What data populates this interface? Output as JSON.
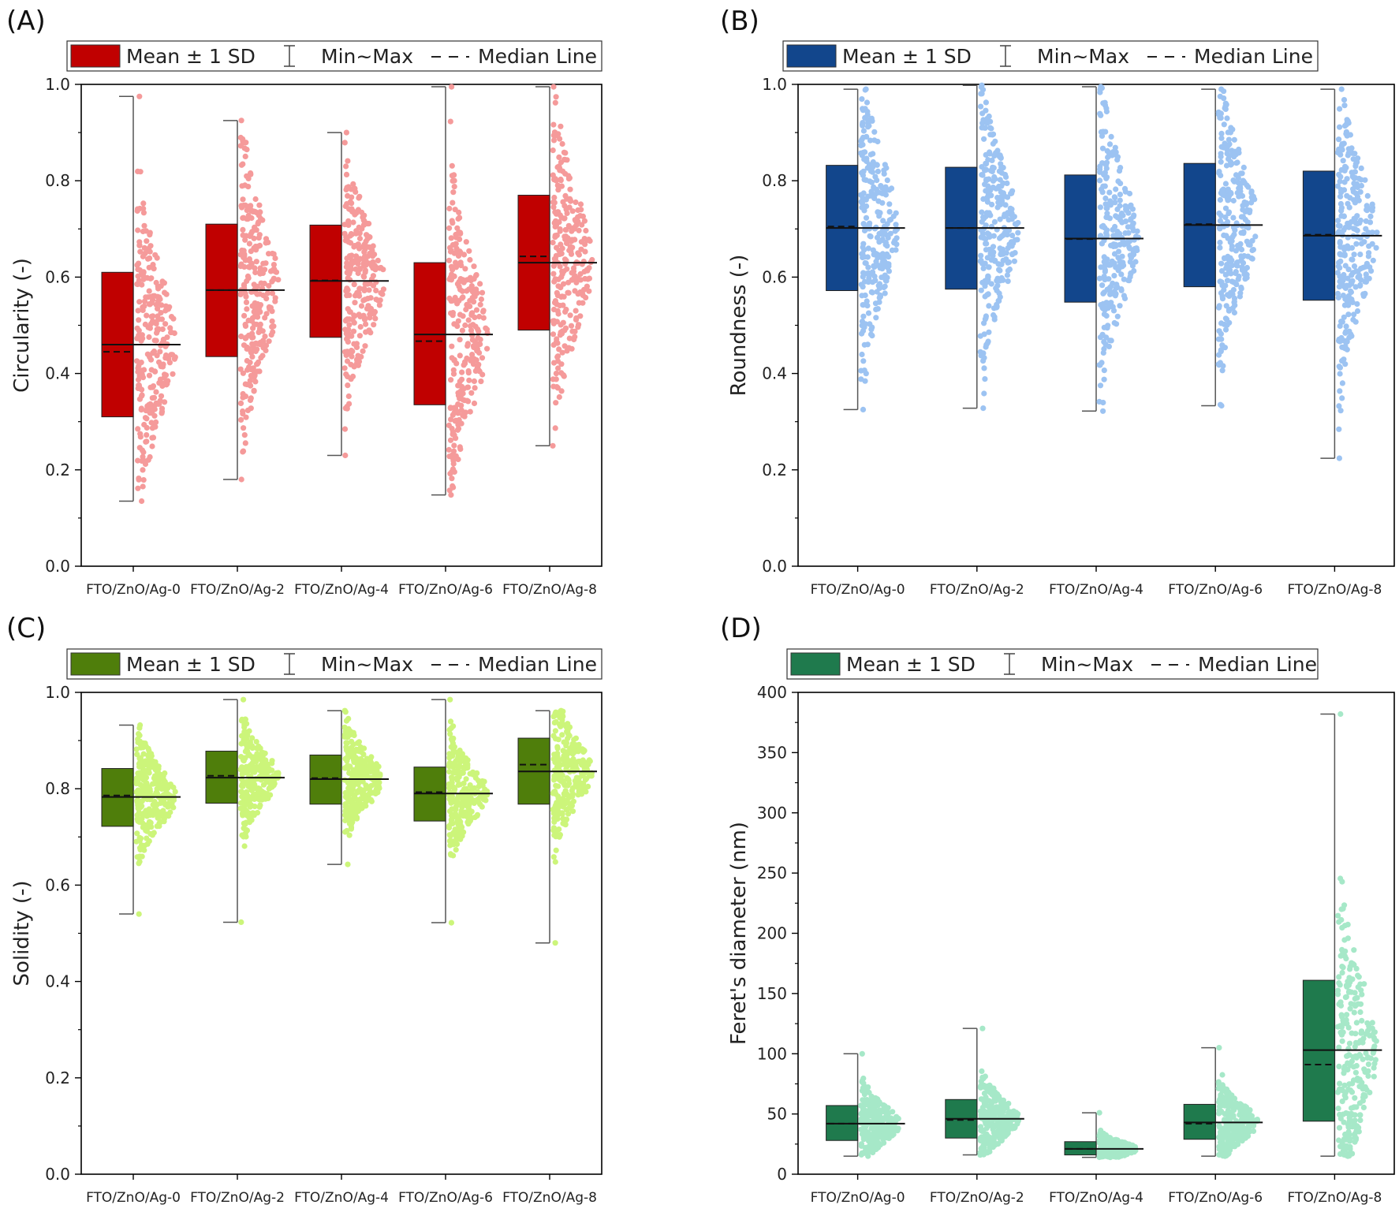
{
  "chart_data": [
    {
      "panel": "(A)",
      "type": "box",
      "ylabel": "Circularity (-)",
      "ylim": [
        0,
        1.0
      ],
      "yticks": [
        "0.0",
        "0.2",
        "0.4",
        "0.6",
        "0.8",
        "1.0"
      ],
      "categories": [
        "FTO/ZnO/Ag-0",
        "FTO/ZnO/Ag-2",
        "FTO/ZnO/Ag-4",
        "FTO/ZnO/Ag-6",
        "FTO/ZnO/Ag-8"
      ],
      "legend": [
        "Mean ± 1 SD",
        "Min~Max",
        "Median Line"
      ],
      "box_color": "#c00000",
      "point_color": "#f59a9a",
      "series": [
        {
          "category": "FTO/ZnO/Ag-0",
          "box_low": 0.31,
          "box_high": 0.61,
          "mean": 0.46,
          "median": 0.445,
          "min": 0.135,
          "max": 0.975
        },
        {
          "category": "FTO/ZnO/Ag-2",
          "box_low": 0.435,
          "box_high": 0.71,
          "mean": 0.573,
          "median": 0.573,
          "min": 0.18,
          "max": 0.925
        },
        {
          "category": "FTO/ZnO/Ag-4",
          "box_low": 0.475,
          "box_high": 0.708,
          "mean": 0.592,
          "median": 0.593,
          "min": 0.23,
          "max": 0.9
        },
        {
          "category": "FTO/ZnO/Ag-6",
          "box_low": 0.335,
          "box_high": 0.63,
          "mean": 0.481,
          "median": 0.467,
          "min": 0.148,
          "max": 0.995
        },
        {
          "category": "FTO/ZnO/Ag-8",
          "box_low": 0.49,
          "box_high": 0.77,
          "mean": 0.63,
          "median": 0.643,
          "min": 0.25,
          "max": 0.995
        }
      ]
    },
    {
      "panel": "(B)",
      "type": "box",
      "ylabel": "Roundness (-)",
      "ylim": [
        0,
        1.0
      ],
      "yticks": [
        "0.0",
        "0.2",
        "0.4",
        "0.6",
        "0.8",
        "1.0"
      ],
      "categories": [
        "FTO/ZnO/Ag-0",
        "FTO/ZnO/Ag-2",
        "FTO/ZnO/Ag-4",
        "FTO/ZnO/Ag-6",
        "FTO/ZnO/Ag-8"
      ],
      "legend": [
        "Mean ± 1 SD",
        "Min~Max",
        "Median Line"
      ],
      "box_color": "#12468c",
      "point_color": "#9cc3f2",
      "series": [
        {
          "category": "FTO/ZnO/Ag-0",
          "box_low": 0.572,
          "box_high": 0.832,
          "mean": 0.702,
          "median": 0.705,
          "min": 0.325,
          "max": 0.99
        },
        {
          "category": "FTO/ZnO/Ag-2",
          "box_low": 0.575,
          "box_high": 0.828,
          "mean": 0.702,
          "median": 0.702,
          "min": 0.328,
          "max": 0.998
        },
        {
          "category": "FTO/ZnO/Ag-4",
          "box_low": 0.548,
          "box_high": 0.812,
          "mean": 0.68,
          "median": 0.679,
          "min": 0.322,
          "max": 0.995
        },
        {
          "category": "FTO/ZnO/Ag-6",
          "box_low": 0.58,
          "box_high": 0.836,
          "mean": 0.708,
          "median": 0.71,
          "min": 0.333,
          "max": 0.99
        },
        {
          "category": "FTO/ZnO/Ag-8",
          "box_low": 0.552,
          "box_high": 0.82,
          "mean": 0.686,
          "median": 0.688,
          "min": 0.224,
          "max": 0.99
        }
      ]
    },
    {
      "panel": "(C)",
      "type": "box",
      "ylabel": "Solidity (-)",
      "ylim": [
        0,
        1.0
      ],
      "yticks": [
        "0.0",
        "0.2",
        "0.4",
        "0.6",
        "0.8",
        "1.0"
      ],
      "categories": [
        "FTO/ZnO/Ag-0",
        "FTO/ZnO/Ag-2",
        "FTO/ZnO/Ag-4",
        "FTO/ZnO/Ag-6",
        "FTO/ZnO/Ag-8"
      ],
      "legend": [
        "Mean ± 1 SD",
        "Min~Max",
        "Median Line"
      ],
      "box_color": "#4f7e0b",
      "point_color": "#ccf57a",
      "series": [
        {
          "category": "FTO/ZnO/Ag-0",
          "box_low": 0.722,
          "box_high": 0.842,
          "mean": 0.783,
          "median": 0.786,
          "min": 0.54,
          "max": 0.932
        },
        {
          "category": "FTO/ZnO/Ag-2",
          "box_low": 0.77,
          "box_high": 0.878,
          "mean": 0.823,
          "median": 0.827,
          "min": 0.523,
          "max": 0.985
        },
        {
          "category": "FTO/ZnO/Ag-4",
          "box_low": 0.768,
          "box_high": 0.87,
          "mean": 0.82,
          "median": 0.822,
          "min": 0.643,
          "max": 0.962
        },
        {
          "category": "FTO/ZnO/Ag-6",
          "box_low": 0.733,
          "box_high": 0.845,
          "mean": 0.79,
          "median": 0.793,
          "min": 0.522,
          "max": 0.985
        },
        {
          "category": "FTO/ZnO/Ag-8",
          "box_low": 0.768,
          "box_high": 0.905,
          "mean": 0.836,
          "median": 0.85,
          "min": 0.48,
          "max": 0.962
        }
      ]
    },
    {
      "panel": "(D)",
      "type": "box",
      "ylabel": "Feret's diameter (nm)",
      "ylim": [
        0,
        400
      ],
      "yticks": [
        "0",
        "50",
        "100",
        "150",
        "200",
        "250",
        "300",
        "350",
        "400"
      ],
      "categories": [
        "FTO/ZnO/Ag-0",
        "FTO/ZnO/Ag-2",
        "FTO/ZnO/Ag-4",
        "FTO/ZnO/Ag-6",
        "FTO/ZnO/Ag-8"
      ],
      "legend": [
        "Mean ± 1 SD",
        "Min~Max",
        "Median Line"
      ],
      "box_color": "#1f7a4d",
      "point_color": "#a6e8c8",
      "series": [
        {
          "category": "FTO/ZnO/Ag-0",
          "box_low": 28,
          "box_high": 57,
          "mean": 42,
          "median": 42,
          "min": 15,
          "max": 100
        },
        {
          "category": "FTO/ZnO/Ag-2",
          "box_low": 30,
          "box_high": 62,
          "mean": 46,
          "median": 45,
          "min": 16,
          "max": 121
        },
        {
          "category": "FTO/ZnO/Ag-4",
          "box_low": 16,
          "box_high": 27,
          "mean": 21,
          "median": 21,
          "min": 14,
          "max": 51
        },
        {
          "category": "FTO/ZnO/Ag-6",
          "box_low": 29,
          "box_high": 58,
          "mean": 43,
          "median": 42,
          "min": 15,
          "max": 105
        },
        {
          "category": "FTO/ZnO/Ag-8",
          "box_low": 44,
          "box_high": 161,
          "mean": 103,
          "median": 91,
          "min": 15,
          "max": 382
        }
      ]
    }
  ]
}
